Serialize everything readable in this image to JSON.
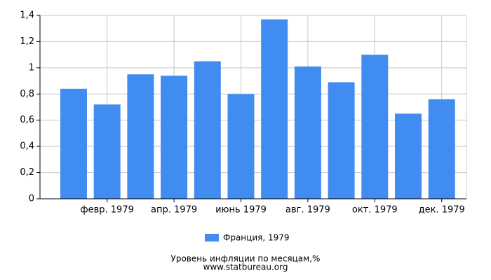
{
  "chart_data": {
    "type": "bar",
    "title": "Уровень инфляции по месяцам,%",
    "source": "www.statbureau.org",
    "categories": [
      null,
      "февр. 1979",
      null,
      "апр. 1979",
      null,
      "июнь 1979",
      null,
      "авг. 1979",
      null,
      "окт. 1979",
      null,
      "дек. 1979"
    ],
    "series": [
      {
        "name": "Франция, 1979",
        "color": "#418cf0",
        "values": [
          0.84,
          0.72,
          0.95,
          0.94,
          1.05,
          0.8,
          1.37,
          1.01,
          0.89,
          1.1,
          0.65,
          0.76
        ]
      }
    ],
    "ylim": [
      0,
      1.4
    ],
    "yticks": [
      0,
      {
        "value": 0.2,
        "label": "0,2"
      },
      {
        "value": 0.4,
        "label": "0,4"
      },
      {
        "value": 0.6,
        "label": "0,6"
      },
      {
        "value": 0.8,
        "label": "0,8"
      },
      1,
      {
        "value": 1.2,
        "label": "1,2"
      },
      {
        "value": 1.4,
        "label": "1,4"
      }
    ],
    "grid": true
  }
}
